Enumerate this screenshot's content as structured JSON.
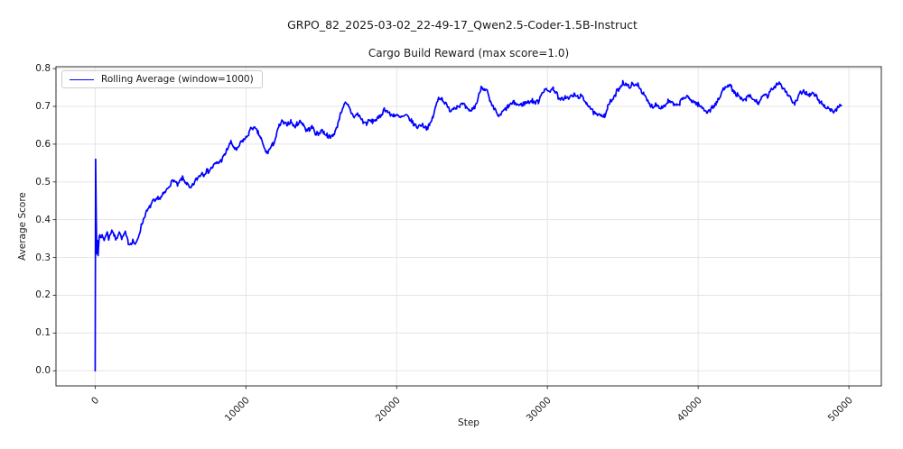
{
  "figure": {
    "suptitle": "GRPO_82_2025-03-02_22-49-17_Qwen2.5-Coder-1.5B-Instruct",
    "background_color": "#ffffff",
    "text_color": "#1a1a1a"
  },
  "chart_data": {
    "type": "line",
    "title": "Cargo Build Reward (max score=1.0)",
    "xlabel": "Step",
    "ylabel": "Average Score",
    "xlim": [
      -2600,
      52150
    ],
    "ylim": [
      -0.04,
      0.805
    ],
    "grid": true,
    "grid_color": "#e5e5e5",
    "spine_color": "#2b2b2b",
    "x_ticks": [
      {
        "v": 0,
        "label": "0"
      },
      {
        "v": 10000,
        "label": "10000"
      },
      {
        "v": 20000,
        "label": "20000"
      },
      {
        "v": 30000,
        "label": "30000"
      },
      {
        "v": 40000,
        "label": "40000"
      },
      {
        "v": 50000,
        "label": "50000"
      }
    ],
    "y_ticks": [
      {
        "v": 0.0,
        "label": "0.0"
      },
      {
        "v": 0.1,
        "label": "0.1"
      },
      {
        "v": 0.2,
        "label": "0.2"
      },
      {
        "v": 0.3,
        "label": "0.3"
      },
      {
        "v": 0.4,
        "label": "0.4"
      },
      {
        "v": 0.5,
        "label": "0.5"
      },
      {
        "v": 0.6,
        "label": "0.6"
      },
      {
        "v": 0.7,
        "label": "0.7"
      },
      {
        "v": 0.8,
        "label": "0.8"
      }
    ],
    "legend": {
      "position": "upper left",
      "entries": [
        {
          "label": "Rolling Average (window=1000)",
          "color": "#0000ff"
        }
      ]
    },
    "series": [
      {
        "name": "Rolling Average (window=1000)",
        "color": "#0000ff",
        "line_width": 1.7,
        "points": [
          [
            0,
            0.0
          ],
          [
            30,
            0.56
          ],
          [
            70,
            0.4
          ],
          [
            110,
            0.31
          ],
          [
            150,
            0.345
          ],
          [
            190,
            0.305
          ],
          [
            230,
            0.33
          ],
          [
            270,
            0.355
          ],
          [
            310,
            0.36
          ],
          [
            400,
            0.358
          ],
          [
            500,
            0.352
          ],
          [
            600,
            0.346
          ],
          [
            700,
            0.36
          ],
          [
            800,
            0.365
          ],
          [
            900,
            0.35
          ],
          [
            1000,
            0.36
          ],
          [
            1100,
            0.374
          ],
          [
            1200,
            0.366
          ],
          [
            1300,
            0.354
          ],
          [
            1400,
            0.346
          ],
          [
            1500,
            0.36
          ],
          [
            1600,
            0.37
          ],
          [
            1700,
            0.356
          ],
          [
            1800,
            0.35
          ],
          [
            1900,
            0.36
          ],
          [
            2000,
            0.364
          ],
          [
            2100,
            0.35
          ],
          [
            2200,
            0.34
          ],
          [
            2300,
            0.336
          ],
          [
            2400,
            0.34
          ],
          [
            2500,
            0.345
          ],
          [
            2600,
            0.338
          ],
          [
            2700,
            0.334
          ],
          [
            2800,
            0.345
          ],
          [
            2900,
            0.36
          ],
          [
            3000,
            0.375
          ],
          [
            3100,
            0.39
          ],
          [
            3200,
            0.4
          ],
          [
            3300,
            0.412
          ],
          [
            3400,
            0.42
          ],
          [
            3500,
            0.425
          ],
          [
            3600,
            0.432
          ],
          [
            3700,
            0.44
          ],
          [
            3800,
            0.446
          ],
          [
            3900,
            0.45
          ],
          [
            4000,
            0.446
          ],
          [
            4100,
            0.454
          ],
          [
            4200,
            0.46
          ],
          [
            4300,
            0.456
          ],
          [
            4400,
            0.46
          ],
          [
            4500,
            0.466
          ],
          [
            4600,
            0.47
          ],
          [
            4700,
            0.476
          ],
          [
            4800,
            0.482
          ],
          [
            4900,
            0.49
          ],
          [
            5000,
            0.496
          ],
          [
            5100,
            0.5
          ],
          [
            5200,
            0.506
          ],
          [
            5300,
            0.5
          ],
          [
            5400,
            0.494
          ],
          [
            5500,
            0.49
          ],
          [
            5600,
            0.5
          ],
          [
            5700,
            0.506
          ],
          [
            5800,
            0.51
          ],
          [
            5900,
            0.504
          ],
          [
            6000,
            0.5
          ],
          [
            6100,
            0.494
          ],
          [
            6200,
            0.488
          ],
          [
            6300,
            0.48
          ],
          [
            6400,
            0.486
          ],
          [
            6500,
            0.492
          ],
          [
            6600,
            0.5
          ],
          [
            6700,
            0.506
          ],
          [
            6800,
            0.51
          ],
          [
            6900,
            0.516
          ],
          [
            7000,
            0.52
          ],
          [
            7100,
            0.525
          ],
          [
            7200,
            0.52
          ],
          [
            7300,
            0.526
          ],
          [
            7400,
            0.53
          ],
          [
            7500,
            0.528
          ],
          [
            7600,
            0.532
          ],
          [
            7700,
            0.536
          ],
          [
            7800,
            0.54
          ],
          [
            7900,
            0.545
          ],
          [
            8000,
            0.548
          ],
          [
            8200,
            0.552
          ],
          [
            8400,
            0.558
          ],
          [
            8600,
            0.572
          ],
          [
            8800,
            0.59
          ],
          [
            9000,
            0.604
          ],
          [
            9200,
            0.592
          ],
          [
            9400,
            0.582
          ],
          [
            9600,
            0.6
          ],
          [
            9800,
            0.61
          ],
          [
            10000,
            0.616
          ],
          [
            10200,
            0.63
          ],
          [
            10400,
            0.645
          ],
          [
            10600,
            0.64
          ],
          [
            10800,
            0.63
          ],
          [
            11000,
            0.615
          ],
          [
            11200,
            0.59
          ],
          [
            11400,
            0.576
          ],
          [
            11600,
            0.588
          ],
          [
            11800,
            0.6
          ],
          [
            12000,
            0.62
          ],
          [
            12200,
            0.648
          ],
          [
            12400,
            0.66
          ],
          [
            12600,
            0.652
          ],
          [
            12800,
            0.656
          ],
          [
            13000,
            0.66
          ],
          [
            13200,
            0.646
          ],
          [
            13400,
            0.654
          ],
          [
            13600,
            0.66
          ],
          [
            13800,
            0.654
          ],
          [
            14000,
            0.636
          ],
          [
            14200,
            0.64
          ],
          [
            14400,
            0.645
          ],
          [
            14600,
            0.63
          ],
          [
            14800,
            0.626
          ],
          [
            15000,
            0.638
          ],
          [
            15200,
            0.63
          ],
          [
            15400,
            0.624
          ],
          [
            15600,
            0.616
          ],
          [
            15800,
            0.626
          ],
          [
            16000,
            0.64
          ],
          [
            16200,
            0.67
          ],
          [
            16400,
            0.696
          ],
          [
            16600,
            0.707
          ],
          [
            16800,
            0.7
          ],
          [
            17000,
            0.682
          ],
          [
            17200,
            0.672
          ],
          [
            17400,
            0.68
          ],
          [
            17600,
            0.67
          ],
          [
            17800,
            0.658
          ],
          [
            18000,
            0.655
          ],
          [
            18200,
            0.662
          ],
          [
            18400,
            0.66
          ],
          [
            18600,
            0.665
          ],
          [
            18800,
            0.668
          ],
          [
            19000,
            0.68
          ],
          [
            19200,
            0.694
          ],
          [
            19400,
            0.686
          ],
          [
            19600,
            0.676
          ],
          [
            19800,
            0.678
          ],
          [
            20000,
            0.676
          ],
          [
            20200,
            0.67
          ],
          [
            20400,
            0.672
          ],
          [
            20600,
            0.675
          ],
          [
            20800,
            0.67
          ],
          [
            21000,
            0.66
          ],
          [
            21200,
            0.65
          ],
          [
            21400,
            0.645
          ],
          [
            21600,
            0.652
          ],
          [
            21800,
            0.648
          ],
          [
            22000,
            0.643
          ],
          [
            22200,
            0.65
          ],
          [
            22400,
            0.672
          ],
          [
            22600,
            0.7
          ],
          [
            22800,
            0.725
          ],
          [
            23000,
            0.72
          ],
          [
            23200,
            0.71
          ],
          [
            23400,
            0.695
          ],
          [
            23600,
            0.69
          ],
          [
            23800,
            0.697
          ],
          [
            24000,
            0.7
          ],
          [
            24200,
            0.703
          ],
          [
            24400,
            0.705
          ],
          [
            24600,
            0.696
          ],
          [
            24800,
            0.686
          ],
          [
            25000,
            0.692
          ],
          [
            25200,
            0.7
          ],
          [
            25400,
            0.72
          ],
          [
            25600,
            0.752
          ],
          [
            25800,
            0.748
          ],
          [
            26000,
            0.74
          ],
          [
            26200,
            0.71
          ],
          [
            26400,
            0.696
          ],
          [
            26600,
            0.686
          ],
          [
            26800,
            0.672
          ],
          [
            27000,
            0.684
          ],
          [
            27200,
            0.692
          ],
          [
            27400,
            0.7
          ],
          [
            27600,
            0.706
          ],
          [
            27800,
            0.71
          ],
          [
            28000,
            0.705
          ],
          [
            28200,
            0.703
          ],
          [
            28400,
            0.707
          ],
          [
            28600,
            0.71
          ],
          [
            28800,
            0.712
          ],
          [
            29000,
            0.715
          ],
          [
            29200,
            0.71
          ],
          [
            29400,
            0.713
          ],
          [
            29600,
            0.734
          ],
          [
            29800,
            0.745
          ],
          [
            30000,
            0.74
          ],
          [
            30200,
            0.743
          ],
          [
            30400,
            0.747
          ],
          [
            30600,
            0.736
          ],
          [
            30800,
            0.716
          ],
          [
            31000,
            0.72
          ],
          [
            31200,
            0.725
          ],
          [
            31400,
            0.72
          ],
          [
            31600,
            0.728
          ],
          [
            31800,
            0.73
          ],
          [
            32000,
            0.725
          ],
          [
            32200,
            0.728
          ],
          [
            32400,
            0.718
          ],
          [
            32600,
            0.71
          ],
          [
            32800,
            0.7
          ],
          [
            33000,
            0.686
          ],
          [
            33200,
            0.678
          ],
          [
            33400,
            0.675
          ],
          [
            33600,
            0.679
          ],
          [
            33800,
            0.676
          ],
          [
            34000,
            0.698
          ],
          [
            34200,
            0.714
          ],
          [
            34400,
            0.72
          ],
          [
            34600,
            0.74
          ],
          [
            34800,
            0.75
          ],
          [
            35000,
            0.764
          ],
          [
            35200,
            0.757
          ],
          [
            35400,
            0.752
          ],
          [
            35600,
            0.758
          ],
          [
            35800,
            0.754
          ],
          [
            36000,
            0.76
          ],
          [
            36200,
            0.745
          ],
          [
            36400,
            0.73
          ],
          [
            36600,
            0.716
          ],
          [
            36800,
            0.704
          ],
          [
            37000,
            0.7
          ],
          [
            37200,
            0.706
          ],
          [
            37400,
            0.7
          ],
          [
            37600,
            0.698
          ],
          [
            37800,
            0.702
          ],
          [
            38000,
            0.714
          ],
          [
            38200,
            0.71
          ],
          [
            38400,
            0.704
          ],
          [
            38600,
            0.7
          ],
          [
            38800,
            0.71
          ],
          [
            39000,
            0.722
          ],
          [
            39200,
            0.725
          ],
          [
            39400,
            0.72
          ],
          [
            39600,
            0.715
          ],
          [
            39800,
            0.71
          ],
          [
            40000,
            0.705
          ],
          [
            40200,
            0.698
          ],
          [
            40400,
            0.692
          ],
          [
            40600,
            0.686
          ],
          [
            40800,
            0.69
          ],
          [
            41000,
            0.7
          ],
          [
            41200,
            0.708
          ],
          [
            41400,
            0.72
          ],
          [
            41600,
            0.74
          ],
          [
            41800,
            0.754
          ],
          [
            42000,
            0.758
          ],
          [
            42200,
            0.75
          ],
          [
            42400,
            0.736
          ],
          [
            42600,
            0.73
          ],
          [
            42800,
            0.72
          ],
          [
            43000,
            0.715
          ],
          [
            43200,
            0.72
          ],
          [
            43400,
            0.728
          ],
          [
            43600,
            0.72
          ],
          [
            43800,
            0.714
          ],
          [
            44000,
            0.71
          ],
          [
            44200,
            0.72
          ],
          [
            44400,
            0.73
          ],
          [
            44600,
            0.726
          ],
          [
            44800,
            0.74
          ],
          [
            45000,
            0.748
          ],
          [
            45200,
            0.76
          ],
          [
            45400,
            0.764
          ],
          [
            45600,
            0.75
          ],
          [
            45800,
            0.74
          ],
          [
            46000,
            0.73
          ],
          [
            46200,
            0.716
          ],
          [
            46400,
            0.706
          ],
          [
            46600,
            0.72
          ],
          [
            46800,
            0.736
          ],
          [
            47000,
            0.74
          ],
          [
            47200,
            0.735
          ],
          [
            47400,
            0.73
          ],
          [
            47600,
            0.734
          ],
          [
            47800,
            0.728
          ],
          [
            48000,
            0.716
          ],
          [
            48200,
            0.708
          ],
          [
            48400,
            0.7
          ],
          [
            48600,
            0.697
          ],
          [
            48800,
            0.69
          ],
          [
            49000,
            0.686
          ],
          [
            49200,
            0.693
          ],
          [
            49400,
            0.7
          ],
          [
            49500,
            0.702
          ]
        ]
      }
    ],
    "render": {
      "noise_amplitude": 0.006,
      "noise_start_step": 350,
      "sample_interval": 60,
      "seed": 7
    }
  }
}
